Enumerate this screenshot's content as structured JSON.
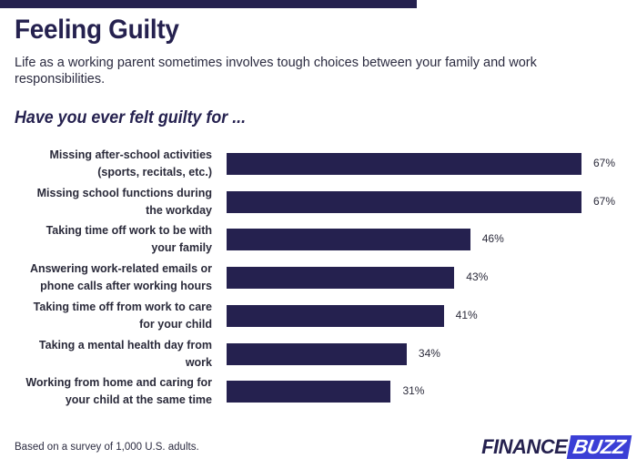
{
  "header": {
    "title": "Feeling Guilty",
    "subtitle": "Life as a working parent sometimes involves tough choices between your family and work responsibilities.",
    "question": "Have you ever felt guilty for ..."
  },
  "footer": {
    "note": "Based on a survey of 1,000 U.S. adults.",
    "logo_part1": "FINANCE",
    "logo_part2": "BUZZ"
  },
  "colors": {
    "bar": "#25214f",
    "logo_accent": "#3b3fd6"
  },
  "chart_data": {
    "type": "bar",
    "orientation": "horizontal",
    "categories": [
      [
        "Missing after-school activities",
        "(sports, recitals, etc.)"
      ],
      [
        "Missing school functions during",
        "the workday"
      ],
      [
        "Taking time off work to be with",
        "your family"
      ],
      [
        "Answering work-related emails or",
        "phone calls after working hours"
      ],
      [
        "Taking time off from work to care",
        "for your child"
      ],
      [
        "Taking a mental health day from",
        "work"
      ],
      [
        "Working from home and caring for",
        "your child at the same time"
      ]
    ],
    "values": [
      67,
      67,
      46,
      43,
      41,
      34,
      31
    ],
    "value_labels": [
      "67%",
      "67%",
      "46%",
      "43%",
      "41%",
      "34%",
      "31%"
    ],
    "unit": "%",
    "xlim": [
      0,
      67
    ]
  }
}
